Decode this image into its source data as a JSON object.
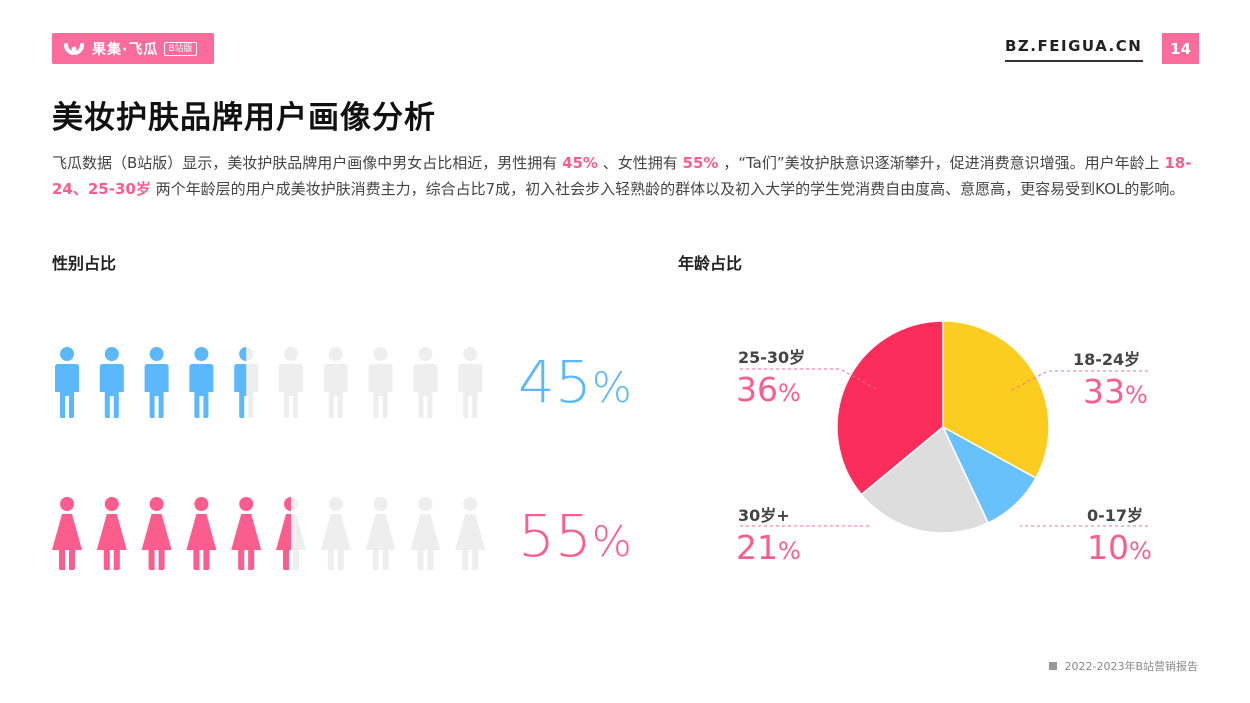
{
  "header": {
    "logo_name": "果集·飞瓜",
    "logo_badge": "B站版",
    "site_url": "BZ.FEIGUA.CN",
    "page_number": "14"
  },
  "title": "美妆护肤品牌用户画像分析",
  "intro": {
    "part1": "飞瓜数据（B站版）显示，美妆护肤品牌用户画像中男女占比相近，男性拥有 ",
    "male_pct": "45%",
    "part2": " 、女性拥有 ",
    "female_pct": "55%",
    "part3": " ，“Ta们”美妆护肤意识逐渐攀升，促进消费意识增强。用户年龄上 ",
    "age_focus": "18-24、25-30岁",
    "part4": " 两个年龄层的用户成美妆护肤消费主力，综合占比7成，初入社会步入轻熟龄的群体以及初入大学的学生党消费自由度高、意愿高，更容易受到KOL的影响。"
  },
  "sections": {
    "gender_title": "性别占比",
    "age_title": "年龄占比"
  },
  "chart_data": [
    {
      "type": "pictograph",
      "title": "性别占比",
      "icons_per_row": 10,
      "series": [
        {
          "name": "male",
          "value": 45,
          "value_label": "45",
          "unit": "%",
          "color": "#5bb9fb"
        },
        {
          "name": "female",
          "value": 55,
          "value_label": "55",
          "unit": "%",
          "color": "#fb5e8e"
        }
      ],
      "empty_color": "#eeeeee"
    },
    {
      "type": "pie",
      "title": "年龄占比",
      "slices": [
        {
          "label": "18-24岁",
          "value": 33,
          "value_label": "33",
          "unit": "%",
          "color": "#fccc20"
        },
        {
          "label": "0-17岁",
          "value": 10,
          "value_label": "10",
          "unit": "%",
          "color": "#69c1fb"
        },
        {
          "label": "30岁+",
          "value": 21,
          "value_label": "21",
          "unit": "%",
          "color": "#dddddd"
        },
        {
          "label": "25-30岁",
          "value": 36,
          "value_label": "36",
          "unit": "%",
          "color": "#fb2d5b"
        }
      ],
      "start_angle_deg": 0,
      "direction": "clockwise",
      "label_color": "#fb5e8e"
    }
  ],
  "footer": {
    "source": "2022-2023年B站营销报告"
  }
}
